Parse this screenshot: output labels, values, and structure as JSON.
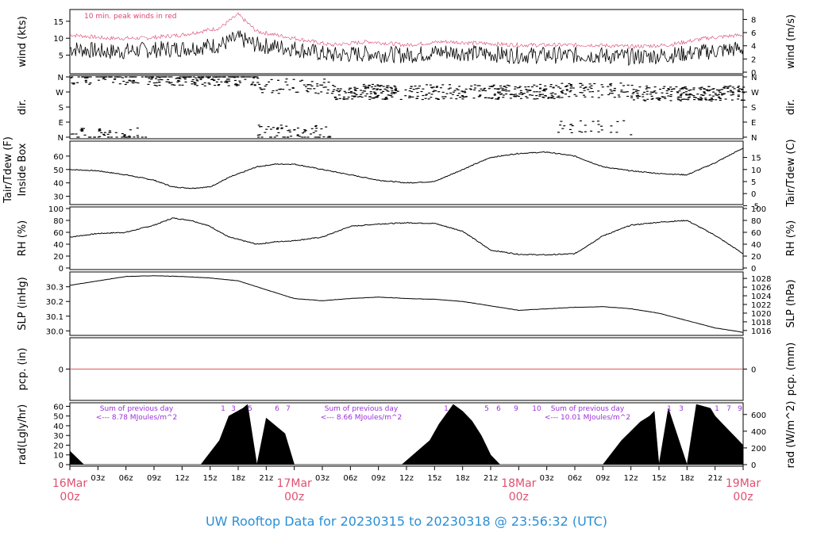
{
  "footer_title": "UW Rooftop Data for 20230315  to  20230318 @ 23:56:32  (UTC)",
  "colors": {
    "trace": "#000000",
    "peak": "#d9476f",
    "pcp_line": "#e05a5a",
    "annotation": "#9b30d9",
    "date_label": "#e05070",
    "footer": "#2a8fd6"
  },
  "xaxis": {
    "ticks": [
      "03z",
      "06z",
      "09z",
      "12z",
      "15z",
      "18z",
      "21z",
      "03z",
      "06z",
      "09z",
      "12z",
      "15z",
      "18z",
      "21z",
      "03z",
      "06z",
      "09z",
      "12z",
      "15z",
      "18z",
      "21z"
    ],
    "dates": [
      {
        "line1": "16Mar",
        "line2": "00z"
      },
      {
        "line1": "17Mar",
        "line2": "00z"
      },
      {
        "line1": "18Mar",
        "line2": "00z"
      },
      {
        "line1": "19Mar",
        "line2": "00z"
      }
    ]
  },
  "panels": {
    "wind": {
      "left_label": "wind (kts)",
      "right_label": "wind (m/s)",
      "note": "10 min. peak winds in red",
      "left_ticks": [
        "5",
        "10",
        "15"
      ],
      "right_ticks": [
        "0",
        "2",
        "4",
        "6",
        "8"
      ]
    },
    "dir": {
      "left_label": "dir.",
      "right_label": "dir.",
      "ticks": [
        "N",
        "E",
        "S",
        "W",
        "N"
      ]
    },
    "temp": {
      "left_label_1": "Tair/Tdew (F)",
      "left_label_2": "Inside Box",
      "right_label": "Tair/Tdew (C)",
      "left_ticks": [
        "30",
        "40",
        "50",
        "60"
      ],
      "right_ticks": [
        "-5",
        "0",
        "5",
        "10",
        "15"
      ]
    },
    "rh": {
      "left_label": "RH (%)",
      "right_label": "RH (%)",
      "ticks": [
        "0",
        "20",
        "40",
        "60",
        "80",
        "100"
      ]
    },
    "slp": {
      "left_label": "SLP (inHg)",
      "right_label": "SLP (hPa)",
      "left_ticks": [
        "30.0",
        "30.1",
        "30.2",
        "30.3"
      ],
      "right_ticks": [
        "1016",
        "1018",
        "1020",
        "1022",
        "1024",
        "1026",
        "1028"
      ]
    },
    "pcp": {
      "left_label": "pcp. (in)",
      "right_label": "pcp. (mm)",
      "left_ticks": [
        "0"
      ],
      "right_ticks": [
        "0"
      ]
    },
    "rad": {
      "left_label": "rad(Lgly/hr)",
      "right_label": "rad (W/m^2)",
      "left_ticks": [
        "0",
        "10",
        "20",
        "30",
        "40",
        "50",
        "60"
      ],
      "right_ticks": [
        "0",
        "200",
        "400",
        "600"
      ],
      "sums": [
        {
          "line1": "Sum of previous day",
          "line2": "<--- 8.78 MJoules/m^2"
        },
        {
          "line1": "Sum of previous day",
          "line2": "<--- 8.66 MJoules/m^2"
        },
        {
          "line1": "Sum of previous day",
          "line2": "<--- 10.01 MJoules/m^2"
        }
      ],
      "hour_marks": [
        "1",
        "3",
        "5",
        "6",
        "7",
        "1",
        "5",
        "6",
        "9",
        "10",
        "1",
        "3",
        "1",
        "7",
        "9"
      ]
    }
  },
  "chart_data": {
    "type": "line",
    "x_unit": "hours since 16Mar 00z",
    "xlim": [
      0,
      72
    ],
    "series": [
      {
        "panel": "wind",
        "unit": "kts",
        "ylim": [
          0,
          18
        ],
        "x": [
          0,
          4,
          8,
          12,
          16,
          18,
          20,
          24,
          28,
          32,
          36,
          40,
          44,
          48,
          52,
          56,
          60,
          64,
          68,
          72
        ],
        "y": [
          7,
          6,
          6.5,
          7,
          8,
          10,
          8,
          7,
          5,
          5.5,
          5,
          6,
          5.5,
          5,
          5,
          5,
          4.5,
          5,
          6,
          7
        ]
      },
      {
        "panel": "wind",
        "name": "10 min. peak winds",
        "unit": "kts",
        "ylim": [
          0,
          18
        ],
        "x": [
          0,
          4,
          8,
          12,
          16,
          18,
          20,
          24,
          28,
          32,
          36,
          40,
          44,
          48,
          52,
          56,
          60,
          64,
          68,
          72
        ],
        "y": [
          11,
          10,
          10,
          11,
          13,
          17,
          12,
          10,
          8,
          9,
          8,
          9,
          8.5,
          8,
          8,
          8,
          7.5,
          8,
          10,
          11
        ]
      },
      {
        "panel": "temp",
        "unit": "F",
        "ylim": [
          25,
          70
        ],
        "x": [
          0,
          3,
          6,
          9,
          11,
          13,
          15,
          17,
          20,
          22,
          24,
          27,
          30,
          33,
          36,
          39,
          42,
          45,
          48,
          51,
          54,
          57,
          60,
          63,
          66,
          69,
          72
        ],
        "y": [
          50,
          49,
          46,
          42,
          37,
          36,
          37,
          44,
          52,
          54,
          54,
          50,
          46,
          42,
          40,
          41,
          50,
          59,
          62,
          63,
          60,
          52,
          49,
          47,
          46,
          55,
          66
        ]
      },
      {
        "panel": "rh",
        "unit": "%",
        "ylim": [
          0,
          100
        ],
        "x": [
          0,
          3,
          6,
          9,
          11,
          13,
          15,
          17,
          20,
          22,
          24,
          27,
          30,
          33,
          36,
          39,
          42,
          45,
          48,
          51,
          54,
          57,
          60,
          63,
          66,
          69,
          72
        ],
        "y": [
          52,
          58,
          60,
          72,
          84,
          80,
          70,
          52,
          40,
          44,
          46,
          52,
          70,
          74,
          76,
          75,
          62,
          30,
          23,
          22,
          24,
          54,
          72,
          77,
          80,
          55,
          24
        ]
      },
      {
        "panel": "slp",
        "unit": "inHg",
        "ylim": [
          29.98,
          30.39
        ],
        "x": [
          0,
          3,
          6,
          9,
          12,
          15,
          18,
          21,
          24,
          27,
          30,
          33,
          36,
          39,
          42,
          45,
          48,
          51,
          54,
          57,
          60,
          63,
          66,
          69,
          72
        ],
        "y": [
          30.31,
          30.34,
          30.37,
          30.375,
          30.37,
          30.36,
          30.34,
          30.28,
          30.22,
          30.205,
          30.22,
          30.23,
          30.22,
          30.215,
          30.2,
          30.17,
          30.14,
          30.15,
          30.16,
          30.165,
          30.15,
          30.12,
          30.07,
          30.02,
          29.99
        ]
      },
      {
        "panel": "pcp",
        "unit": "in",
        "ylim": [
          -0.1,
          0.1
        ],
        "x": [
          0,
          72
        ],
        "y": [
          0,
          0
        ]
      },
      {
        "panel": "rad",
        "unit": "Lgly/hr",
        "ylim": [
          0,
          62
        ],
        "x": [
          0,
          1.5,
          14,
          16,
          17,
          18.5,
          19,
          20,
          21,
          22,
          23,
          24,
          35.5,
          38.5,
          39.5,
          41,
          42,
          43,
          44,
          45,
          46,
          57,
          59,
          61,
          62,
          62.5,
          63,
          64,
          66,
          67,
          68.5,
          69,
          70,
          71,
          72
        ],
        "y": [
          14,
          0,
          0,
          25,
          50,
          58,
          62,
          0,
          48,
          40,
          32,
          0,
          0,
          25,
          42,
          62,
          55,
          45,
          30,
          10,
          0,
          0,
          25,
          44,
          50,
          55,
          0,
          58,
          0,
          62,
          58,
          50,
          40,
          30,
          20
        ]
      }
    ]
  }
}
